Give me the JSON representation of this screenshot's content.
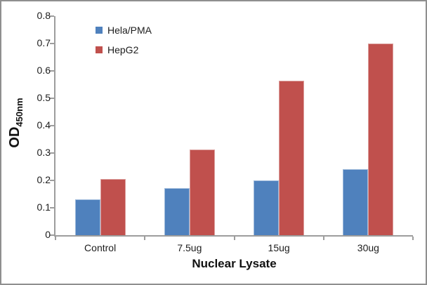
{
  "chart_data": {
    "type": "bar",
    "title": "",
    "categories": [
      "Control",
      "7.5ug",
      "15ug",
      "30ug"
    ],
    "series": [
      {
        "name": "Hela/PMA",
        "color": "#4F81BD",
        "values": [
          0.13,
          0.173,
          0.2,
          0.24
        ]
      },
      {
        "name": "HepG2",
        "color": "#C0504D",
        "values": [
          0.205,
          0.313,
          0.565,
          0.7
        ]
      }
    ],
    "xlabel": "Nuclear Lysate",
    "ylabel": "OD",
    "ylabel_subscript": "450nm",
    "ylim": [
      0,
      0.8
    ],
    "ytick_step": 0.1,
    "ytick_labels": [
      "0",
      "0.1",
      "0.2",
      "0.3",
      "0.4",
      "0.5",
      "0.6",
      "0.7",
      "0.8"
    ],
    "grid": false,
    "legend_position": "top-left-inside"
  },
  "colors": {
    "axis": "#9d9d9d",
    "frame_border": "#8f8f8f",
    "text": "#1c1c1c",
    "background": "#ffffff"
  }
}
